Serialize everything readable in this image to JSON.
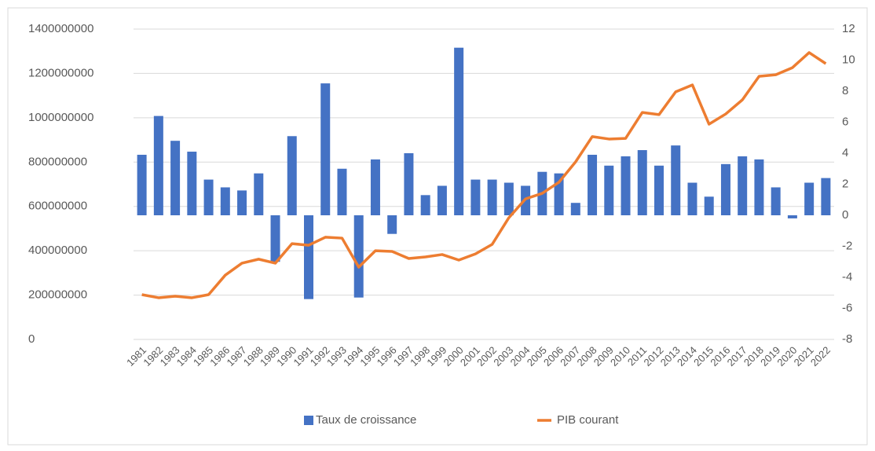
{
  "chart_data": {
    "type": "bar_line",
    "categories": [
      "1981",
      "1982",
      "1983",
      "1984",
      "1985",
      "1986",
      "1987",
      "1988",
      "1989",
      "1990",
      "1991",
      "1992",
      "1993",
      "1994",
      "1995",
      "1996",
      "1997",
      "1998",
      "1999",
      "2000",
      "2001",
      "2002",
      "2003",
      "2004",
      "2005",
      "2006",
      "2007",
      "2008",
      "2009",
      "2010",
      "2011",
      "2012",
      "2013",
      "2014",
      "2015",
      "2016",
      "2017",
      "2018",
      "2019",
      "2020",
      "2021",
      "2022"
    ],
    "series": [
      {
        "name": "Taux de croissance",
        "type": "bar",
        "axis": "y2",
        "color": "#4472c4",
        "values": [
          3.9,
          6.4,
          4.8,
          4.1,
          2.3,
          1.8,
          1.6,
          2.7,
          -3.0,
          5.1,
          -5.4,
          8.5,
          3.0,
          -5.3,
          3.6,
          -1.2,
          4.0,
          1.3,
          1.9,
          10.8,
          2.3,
          2.3,
          2.1,
          1.9,
          2.8,
          2.7,
          0.8,
          3.9,
          3.2,
          3.8,
          4.2,
          3.2,
          4.5,
          2.1,
          1.2,
          3.3,
          3.8,
          3.6,
          1.8,
          -0.2,
          2.1,
          2.4
        ]
      },
      {
        "name": "PIB courant",
        "type": "line",
        "color": "#ed7d31",
        "values": [
          202000000,
          188000000,
          195000000,
          188000000,
          202000000,
          290000000,
          344000000,
          362000000,
          344000000,
          432000000,
          425000000,
          461000000,
          457000000,
          326000000,
          400000000,
          397000000,
          365000000,
          372000000,
          383000000,
          358000000,
          386000000,
          429000000,
          549000000,
          634000000,
          659000000,
          709000000,
          801000000,
          915000000,
          904000000,
          907000000,
          1024000000,
          1014000000,
          1117000000,
          1148000000,
          971000000,
          1017000000,
          1081000000,
          1187000000,
          1194000000,
          1226000000,
          1294000000,
          1244000000
        ]
      }
    ],
    "ylim": [
      0,
      1400000000
    ],
    "yticks": [
      0,
      200000000,
      400000000,
      600000000,
      800000000,
      1000000000,
      1200000000,
      1400000000
    ],
    "y2lim": [
      -8,
      12
    ],
    "y2ticks": [
      -8,
      -6,
      -4,
      -2,
      0,
      2,
      4,
      6,
      8,
      10,
      12
    ],
    "grid": true,
    "legend": "bottom"
  }
}
